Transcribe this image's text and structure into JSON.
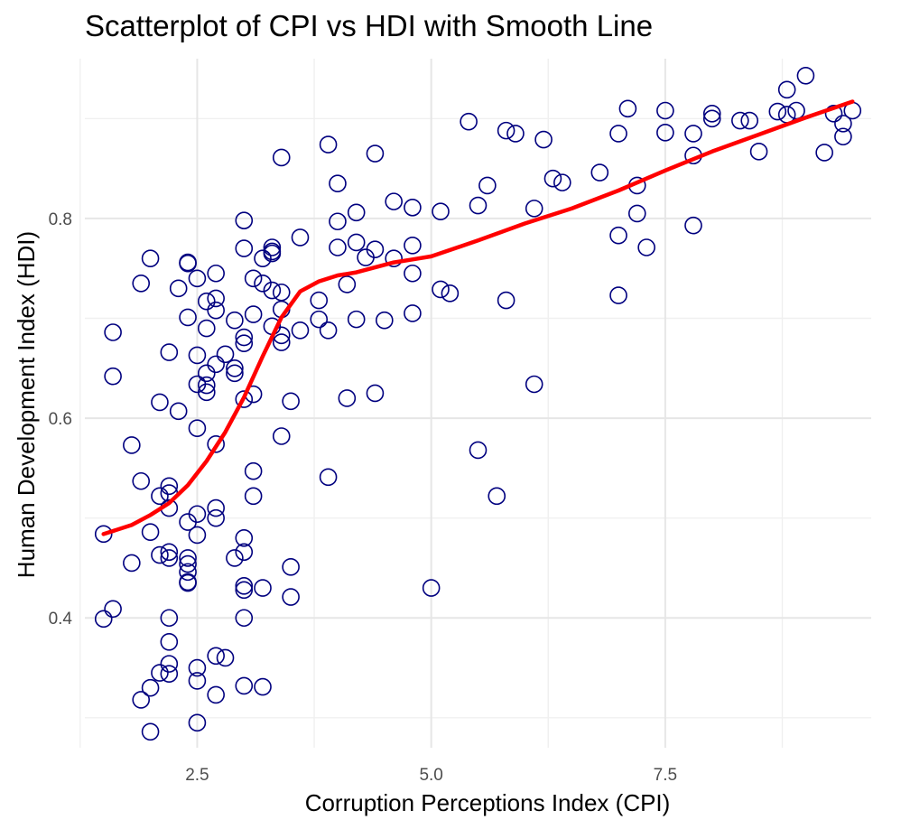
{
  "chart_data": {
    "type": "scatter",
    "title": "Scatterplot of CPI vs HDI with Smooth Line",
    "xlabel": "Corruption Perceptions Index (CPI)",
    "ylabel": "Human Development Index (HDI)",
    "xlim": [
      1.3,
      9.7
    ],
    "ylim": [
      0.27,
      0.96
    ],
    "x_ticks": [
      2.5,
      5.0,
      7.5
    ],
    "x_tick_labels": [
      "2.5",
      "5.0",
      "7.5"
    ],
    "x_minor_ticks": [
      1.25,
      3.75,
      6.25,
      8.75
    ],
    "y_ticks": [
      0.4,
      0.6,
      0.8
    ],
    "y_tick_labels": [
      "0.4",
      "0.6",
      "0.8"
    ],
    "y_minor_ticks": [
      0.3,
      0.5,
      0.7,
      0.9
    ],
    "grid": true,
    "point_color": "#00007f",
    "line_color": "#ff0000",
    "series": [
      {
        "type": "scatter",
        "points": [
          [
            1.5,
            0.484
          ],
          [
            1.5,
            0.399
          ],
          [
            1.6,
            0.409
          ],
          [
            1.6,
            0.686
          ],
          [
            1.6,
            0.642
          ],
          [
            1.8,
            0.573
          ],
          [
            1.8,
            0.455
          ],
          [
            1.9,
            0.537
          ],
          [
            1.9,
            0.735
          ],
          [
            1.9,
            0.318
          ],
          [
            2.0,
            0.76
          ],
          [
            2.0,
            0.486
          ],
          [
            2.0,
            0.33
          ],
          [
            2.0,
            0.286
          ],
          [
            2.1,
            0.616
          ],
          [
            2.1,
            0.522
          ],
          [
            2.1,
            0.463
          ],
          [
            2.1,
            0.345
          ],
          [
            2.2,
            0.666
          ],
          [
            2.2,
            0.532
          ],
          [
            2.2,
            0.525
          ],
          [
            2.2,
            0.51
          ],
          [
            2.2,
            0.466
          ],
          [
            2.2,
            0.46
          ],
          [
            2.2,
            0.4
          ],
          [
            2.2,
            0.376
          ],
          [
            2.2,
            0.354
          ],
          [
            2.2,
            0.344
          ],
          [
            2.3,
            0.73
          ],
          [
            2.3,
            0.607
          ],
          [
            2.4,
            0.756
          ],
          [
            2.4,
            0.755
          ],
          [
            2.4,
            0.701
          ],
          [
            2.4,
            0.496
          ],
          [
            2.4,
            0.46
          ],
          [
            2.4,
            0.454
          ],
          [
            2.4,
            0.446
          ],
          [
            2.4,
            0.436
          ],
          [
            2.4,
            0.435
          ],
          [
            2.5,
            0.74
          ],
          [
            2.5,
            0.663
          ],
          [
            2.5,
            0.634
          ],
          [
            2.5,
            0.59
          ],
          [
            2.5,
            0.504
          ],
          [
            2.5,
            0.483
          ],
          [
            2.5,
            0.35
          ],
          [
            2.5,
            0.337
          ],
          [
            2.5,
            0.295
          ],
          [
            2.6,
            0.717
          ],
          [
            2.6,
            0.69
          ],
          [
            2.6,
            0.645
          ],
          [
            2.6,
            0.633
          ],
          [
            2.6,
            0.626
          ],
          [
            2.7,
            0.745
          ],
          [
            2.7,
            0.72
          ],
          [
            2.7,
            0.708
          ],
          [
            2.7,
            0.654
          ],
          [
            2.7,
            0.574
          ],
          [
            2.7,
            0.51
          ],
          [
            2.7,
            0.5
          ],
          [
            2.7,
            0.362
          ],
          [
            2.7,
            0.323
          ],
          [
            2.8,
            0.664
          ],
          [
            2.8,
            0.36
          ],
          [
            2.9,
            0.698
          ],
          [
            2.9,
            0.65
          ],
          [
            2.9,
            0.645
          ],
          [
            2.9,
            0.46
          ],
          [
            3.0,
            0.798
          ],
          [
            3.0,
            0.77
          ],
          [
            3.0,
            0.681
          ],
          [
            3.0,
            0.675
          ],
          [
            3.0,
            0.619
          ],
          [
            3.0,
            0.48
          ],
          [
            3.0,
            0.466
          ],
          [
            3.0,
            0.432
          ],
          [
            3.0,
            0.428
          ],
          [
            3.0,
            0.4
          ],
          [
            3.0,
            0.332
          ],
          [
            3.1,
            0.74
          ],
          [
            3.1,
            0.704
          ],
          [
            3.1,
            0.624
          ],
          [
            3.1,
            0.547
          ],
          [
            3.1,
            0.522
          ],
          [
            3.2,
            0.76
          ],
          [
            3.2,
            0.735
          ],
          [
            3.2,
            0.43
          ],
          [
            3.2,
            0.331
          ],
          [
            3.3,
            0.771
          ],
          [
            3.3,
            0.767
          ],
          [
            3.3,
            0.765
          ],
          [
            3.3,
            0.728
          ],
          [
            3.3,
            0.692
          ],
          [
            3.4,
            0.861
          ],
          [
            3.4,
            0.726
          ],
          [
            3.4,
            0.709
          ],
          [
            3.4,
            0.683
          ],
          [
            3.4,
            0.676
          ],
          [
            3.4,
            0.582
          ],
          [
            3.5,
            0.617
          ],
          [
            3.5,
            0.451
          ],
          [
            3.5,
            0.421
          ],
          [
            3.6,
            0.781
          ],
          [
            3.6,
            0.688
          ],
          [
            3.8,
            0.718
          ],
          [
            3.8,
            0.699
          ],
          [
            3.9,
            0.874
          ],
          [
            3.9,
            0.688
          ],
          [
            3.9,
            0.541
          ],
          [
            4.0,
            0.835
          ],
          [
            4.0,
            0.797
          ],
          [
            4.0,
            0.771
          ],
          [
            4.1,
            0.734
          ],
          [
            4.1,
            0.62
          ],
          [
            4.2,
            0.806
          ],
          [
            4.2,
            0.776
          ],
          [
            4.2,
            0.699
          ],
          [
            4.3,
            0.761
          ],
          [
            4.4,
            0.865
          ],
          [
            4.4,
            0.769
          ],
          [
            4.4,
            0.625
          ],
          [
            4.5,
            0.698
          ],
          [
            4.6,
            0.817
          ],
          [
            4.6,
            0.76
          ],
          [
            4.8,
            0.811
          ],
          [
            4.8,
            0.773
          ],
          [
            4.8,
            0.745
          ],
          [
            4.8,
            0.705
          ],
          [
            5.0,
            0.43
          ],
          [
            5.1,
            0.807
          ],
          [
            5.1,
            0.729
          ],
          [
            5.2,
            0.725
          ],
          [
            5.4,
            0.897
          ],
          [
            5.5,
            0.813
          ],
          [
            5.5,
            0.568
          ],
          [
            5.6,
            0.833
          ],
          [
            5.7,
            0.522
          ],
          [
            5.8,
            0.888
          ],
          [
            5.8,
            0.718
          ],
          [
            5.9,
            0.885
          ],
          [
            6.1,
            0.81
          ],
          [
            6.1,
            0.634
          ],
          [
            6.2,
            0.879
          ],
          [
            6.3,
            0.84
          ],
          [
            6.4,
            0.836
          ],
          [
            6.8,
            0.846
          ],
          [
            7.0,
            0.885
          ],
          [
            7.0,
            0.783
          ],
          [
            7.0,
            0.723
          ],
          [
            7.1,
            0.91
          ],
          [
            7.2,
            0.833
          ],
          [
            7.2,
            0.805
          ],
          [
            7.3,
            0.771
          ],
          [
            7.5,
            0.908
          ],
          [
            7.5,
            0.886
          ],
          [
            7.8,
            0.885
          ],
          [
            7.8,
            0.863
          ],
          [
            7.8,
            0.793
          ],
          [
            8.0,
            0.905
          ],
          [
            8.0,
            0.9
          ],
          [
            8.3,
            0.898
          ],
          [
            8.4,
            0.898
          ],
          [
            8.5,
            0.867
          ],
          [
            8.7,
            0.907
          ],
          [
            8.8,
            0.929
          ],
          [
            8.8,
            0.904
          ],
          [
            8.9,
            0.908
          ],
          [
            9.0,
            0.943
          ],
          [
            9.2,
            0.866
          ],
          [
            9.3,
            0.905
          ],
          [
            9.4,
            0.895
          ],
          [
            9.4,
            0.882
          ],
          [
            9.5,
            0.908
          ]
        ]
      },
      {
        "type": "line",
        "points": [
          [
            1.5,
            0.484
          ],
          [
            1.8,
            0.493
          ],
          [
            2.0,
            0.503
          ],
          [
            2.2,
            0.515
          ],
          [
            2.4,
            0.533
          ],
          [
            2.6,
            0.557
          ],
          [
            2.8,
            0.586
          ],
          [
            3.0,
            0.621
          ],
          [
            3.2,
            0.662
          ],
          [
            3.4,
            0.701
          ],
          [
            3.6,
            0.727
          ],
          [
            3.8,
            0.737
          ],
          [
            4.0,
            0.743
          ],
          [
            4.2,
            0.746
          ],
          [
            4.4,
            0.751
          ],
          [
            4.6,
            0.756
          ],
          [
            4.8,
            0.759
          ],
          [
            5.0,
            0.762
          ],
          [
            5.5,
            0.778
          ],
          [
            6.0,
            0.795
          ],
          [
            6.5,
            0.81
          ],
          [
            7.0,
            0.828
          ],
          [
            7.5,
            0.848
          ],
          [
            8.0,
            0.867
          ],
          [
            8.5,
            0.884
          ],
          [
            9.0,
            0.901
          ],
          [
            9.5,
            0.917
          ]
        ]
      }
    ]
  }
}
